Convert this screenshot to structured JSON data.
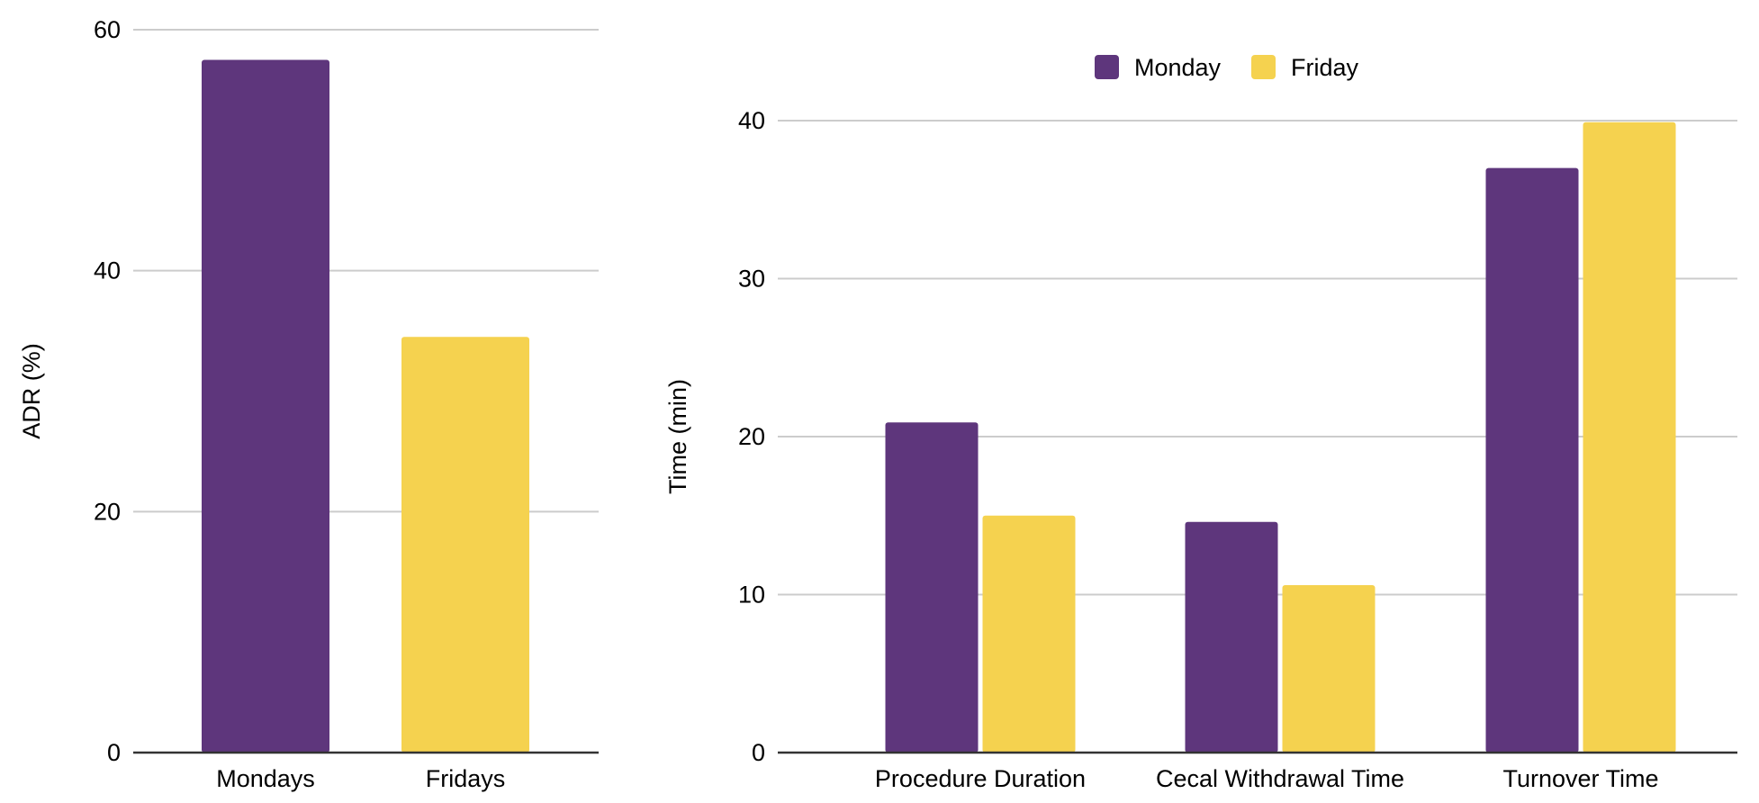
{
  "chart_data": [
    {
      "type": "bar",
      "categories": [
        "Mondays",
        "Fridays"
      ],
      "values": [
        57.5,
        34.5
      ],
      "colors": [
        "#5e367c",
        "#f5d24f"
      ],
      "title": "",
      "xlabel": "",
      "ylabel": "ADR (%)",
      "ylim": [
        0,
        60
      ],
      "yticks": [
        0,
        20,
        40,
        60
      ],
      "grid": true,
      "legend": "none"
    },
    {
      "type": "bar",
      "categories": [
        "Procedure Duration",
        "Cecal Withdrawal Time",
        "Turnover Time"
      ],
      "series": [
        {
          "name": "Monday",
          "values": [
            20.9,
            14.6,
            37.0
          ],
          "color": "#5e367c"
        },
        {
          "name": "Friday",
          "values": [
            15.0,
            10.6,
            39.9
          ],
          "color": "#f5d24f"
        }
      ],
      "title": "",
      "xlabel": "",
      "ylabel": "Time (min)",
      "ylim": [
        0,
        40
      ],
      "yticks": [
        0,
        10,
        20,
        30,
        40
      ],
      "grid": true,
      "legend": "top-center"
    }
  ]
}
